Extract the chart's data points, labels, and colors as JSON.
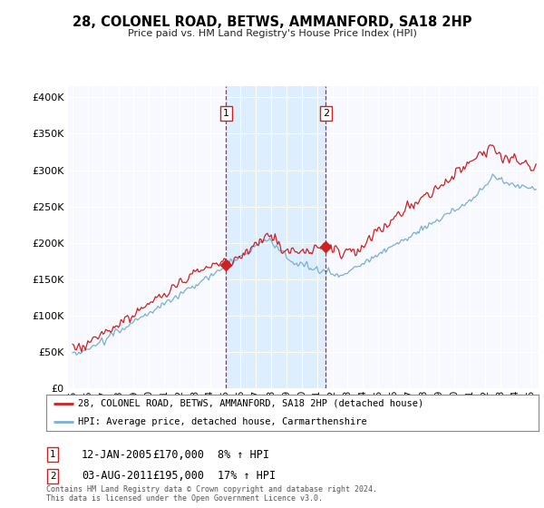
{
  "title": "28, COLONEL ROAD, BETWS, AMMANFORD, SA18 2HP",
  "subtitle": "Price paid vs. HM Land Registry's House Price Index (HPI)",
  "ytick_values": [
    0,
    50000,
    100000,
    150000,
    200000,
    250000,
    300000,
    350000,
    400000
  ],
  "ylim": [
    0,
    415000
  ],
  "legend_line1": "28, COLONEL ROAD, BETWS, AMMANFORD, SA18 2HP (detached house)",
  "legend_line2": "HPI: Average price, detached house, Carmarthenshire",
  "sale1_date": "12-JAN-2005",
  "sale1_price": "£170,000",
  "sale1_hpi": "8% ↑ HPI",
  "sale1_x": 2005.04,
  "sale1_y": 170000,
  "sale2_date": "03-AUG-2011",
  "sale2_price": "£195,000",
  "sale2_hpi": "17% ↑ HPI",
  "sale2_x": 2011.58,
  "sale2_y": 195000,
  "vline1_x": 2005.04,
  "vline2_x": 2011.58,
  "line1_color": "#cc2222",
  "line2_color": "#7aafd4",
  "vline_color": "#cc2222",
  "shade_color": "#ddeeff",
  "footer": "Contains HM Land Registry data © Crown copyright and database right 2024.\nThis data is licensed under the Open Government Licence v3.0.",
  "background_color": "#ffffff",
  "plot_bg_color": "#f8f8ff",
  "grid_color": "#cccccc",
  "xlim_start": 1994.7,
  "xlim_end": 2025.5
}
